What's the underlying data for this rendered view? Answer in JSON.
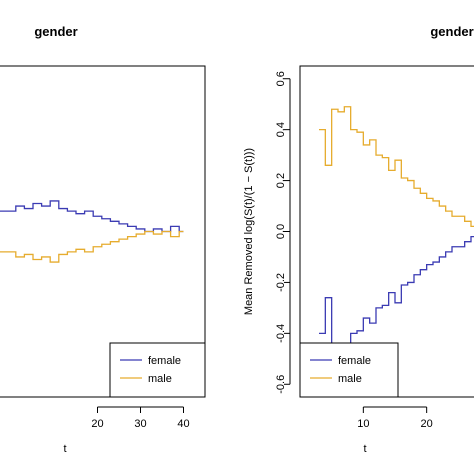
{
  "chart_data": [
    {
      "type": "line",
      "step": true,
      "title": "gender",
      "xlabel": "t",
      "ylabel": "",
      "xlim": [
        -5,
        45
      ],
      "ylim": [
        -0.65,
        0.65
      ],
      "xticks": [
        20,
        30,
        40
      ],
      "yticks": [],
      "legend": {
        "placement": "bottom-right",
        "entries": [
          "female",
          "male"
        ]
      },
      "series": [
        {
          "name": "female",
          "color": "#3b3bb3",
          "x": [
            -5,
            1,
            3,
            5,
            7,
            9,
            11,
            13,
            15,
            17,
            19,
            21,
            23,
            25,
            27,
            29,
            31,
            33,
            35,
            37,
            39,
            40
          ],
          "y": [
            0.08,
            0.1,
            0.09,
            0.11,
            0.1,
            0.12,
            0.09,
            0.08,
            0.07,
            0.08,
            0.06,
            0.05,
            0.04,
            0.03,
            0.02,
            0.01,
            0.0,
            0.01,
            0.0,
            0.02,
            0.0,
            0.0
          ]
        },
        {
          "name": "male",
          "color": "#e6ac2e",
          "x": [
            -5,
            1,
            3,
            5,
            7,
            9,
            11,
            13,
            15,
            17,
            19,
            21,
            23,
            25,
            27,
            29,
            31,
            33,
            35,
            37,
            39,
            40
          ],
          "y": [
            -0.08,
            -0.1,
            -0.09,
            -0.11,
            -0.1,
            -0.12,
            -0.09,
            -0.08,
            -0.07,
            -0.08,
            -0.06,
            -0.05,
            -0.04,
            -0.03,
            -0.02,
            -0.01,
            0.0,
            -0.01,
            0.0,
            -0.02,
            0.0,
            0.0
          ]
        }
      ]
    },
    {
      "type": "line",
      "step": true,
      "title": "gender",
      "xlabel": "t",
      "ylabel": "Mean Removed log(S(t)/(1 − S(t)))",
      "xlim": [
        0,
        30
      ],
      "ylim": [
        -0.65,
        0.65
      ],
      "xticks": [
        10,
        20
      ],
      "yticks": [
        -0.6,
        -0.4,
        -0.2,
        0.0,
        0.2,
        0.4,
        0.6
      ],
      "legend": {
        "placement": "bottom-left",
        "entries": [
          "female",
          "male"
        ]
      },
      "series": [
        {
          "name": "female",
          "color": "#3b3bb3",
          "x": [
            3,
            4,
            5,
            6,
            7,
            8,
            9,
            10,
            11,
            12,
            13,
            14,
            15,
            16,
            17,
            18,
            19,
            20,
            21,
            22,
            23,
            24,
            25,
            26,
            27,
            28,
            29
          ],
          "y": [
            -0.4,
            -0.26,
            -0.48,
            -0.47,
            -0.49,
            -0.4,
            -0.39,
            -0.34,
            -0.36,
            -0.3,
            -0.29,
            -0.24,
            -0.28,
            -0.21,
            -0.2,
            -0.17,
            -0.15,
            -0.13,
            -0.12,
            -0.1,
            -0.08,
            -0.06,
            -0.06,
            -0.04,
            -0.02,
            0.0,
            0.0
          ]
        },
        {
          "name": "male",
          "color": "#e6ac2e",
          "x": [
            3,
            4,
            5,
            6,
            7,
            8,
            9,
            10,
            11,
            12,
            13,
            14,
            15,
            16,
            17,
            18,
            19,
            20,
            21,
            22,
            23,
            24,
            25,
            26,
            27,
            28,
            29
          ],
          "y": [
            0.4,
            0.26,
            0.48,
            0.47,
            0.49,
            0.4,
            0.39,
            0.34,
            0.36,
            0.3,
            0.29,
            0.24,
            0.28,
            0.21,
            0.2,
            0.17,
            0.15,
            0.13,
            0.12,
            0.1,
            0.08,
            0.06,
            0.06,
            0.04,
            0.02,
            0.0,
            0.0
          ]
        }
      ]
    }
  ]
}
